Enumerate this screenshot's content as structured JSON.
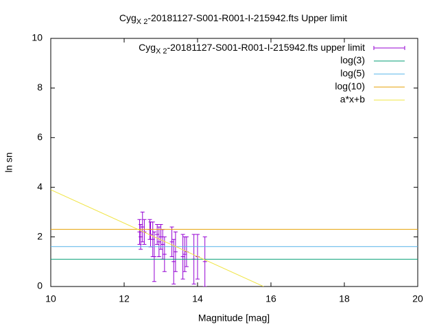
{
  "chart_data": {
    "type": "errorbar",
    "title": {
      "main": "Cyg",
      "subscript": "X 2",
      "rest": "-20181127-S001-R001-I-215942.fts Upper limit"
    },
    "x_label": "Magnitude [mag]",
    "y_label": "ln sn",
    "xlim": [
      10,
      20
    ],
    "ylim": [
      0,
      10
    ],
    "xticks": [
      10,
      12,
      14,
      16,
      18,
      20
    ],
    "yticks": [
      0,
      2,
      4,
      6,
      8,
      10
    ],
    "legend": "top-right",
    "series": [
      {
        "name": {
          "main": "Cyg",
          "subscript": "X 2",
          "rest": "-20181127-S001-R001-I-215942.fts upper limit"
        },
        "color": "#9400d3",
        "style": "errorbars",
        "x": [
          12.42,
          12.45,
          12.5,
          12.55,
          12.7,
          12.72,
          12.78,
          12.82,
          12.9,
          12.95,
          13.0,
          13.05,
          13.1,
          13.3,
          13.35,
          13.4,
          13.6,
          13.65,
          13.7,
          13.9,
          14.0,
          14.2
        ],
        "values": [
          2.2,
          2.0,
          2.4,
          2.2,
          2.3,
          2.1,
          1.9,
          1.2,
          2.1,
          1.8,
          2.0,
          1.7,
          1.3,
          1.8,
          1.0,
          1.4,
          1.2,
          1.3,
          1.4,
          1.1,
          1.2,
          1.0
        ],
        "errors": [
          0.5,
          0.5,
          0.6,
          0.5,
          0.4,
          0.5,
          0.7,
          1.0,
          0.4,
          0.6,
          0.5,
          0.6,
          0.7,
          0.6,
          0.9,
          0.8,
          0.9,
          0.7,
          0.6,
          1.0,
          0.9,
          1.0
        ]
      },
      {
        "name": "log(3)",
        "color": "#009e73",
        "style": "line",
        "x": [
          10,
          20
        ],
        "values": [
          1.0986,
          1.0986
        ]
      },
      {
        "name": "log(5)",
        "color": "#56b4e9",
        "style": "line",
        "x": [
          10,
          20
        ],
        "values": [
          1.6094,
          1.6094
        ]
      },
      {
        "name": "log(10)",
        "color": "#e69f00",
        "style": "line",
        "x": [
          10,
          20
        ],
        "values": [
          2.3026,
          2.3026
        ]
      },
      {
        "name": "a*x+b",
        "color": "#f0e442",
        "style": "line",
        "x": [
          10,
          15.8
        ],
        "values": [
          3.9,
          0
        ]
      }
    ]
  }
}
